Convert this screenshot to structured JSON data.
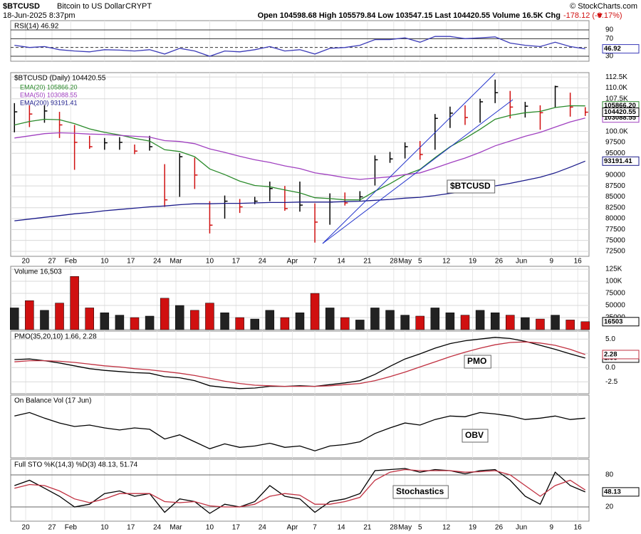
{
  "header": {
    "symbol": "$BTCUSD",
    "name": "Bitcoin to US Dollar",
    "exchange": "CRYPT",
    "date": "18-Jun-2025 8:37pm",
    "quote": "Open 104598.68  High 105579.84  Low 103547.15  Last 104420.55  Volume 16.5K  Chg",
    "change": "-178.12 (-0.17%)",
    "credit": "© StockCharts.com"
  },
  "chart_data": [
    {
      "type": "line",
      "title": "RSI(14) 46.92",
      "ylim": [
        18.7,
        111
      ],
      "yticks": [
        90,
        70,
        50,
        30
      ],
      "grid_color": "#333333",
      "series": [
        {
          "color": "#3b3bb8",
          "last_box": true,
          "values": [
            55,
            50,
            52,
            45,
            42,
            40,
            45,
            44,
            42,
            45,
            35,
            48,
            42,
            30,
            42,
            40,
            45,
            52,
            42,
            45,
            35,
            48,
            50,
            55,
            68,
            68,
            72,
            62,
            75,
            75,
            70,
            72,
            74,
            60,
            55,
            52,
            62,
            52,
            46.92
          ]
        }
      ]
    },
    {
      "type": "ohlc",
      "title": "$BTCUSD (Daily) 104420.55",
      "annotation": "$BTCUSD",
      "ylim": [
        71350,
        113500
      ],
      "grid_color": "#d8d8d8",
      "color_up": "#000000",
      "color_down": "#d01010",
      "yticks": [
        {
          "value": 112500,
          "label": "112.5K"
        },
        {
          "value": 110000,
          "label": "110.0K"
        },
        {
          "value": 107500,
          "label": "107.5K"
        },
        {
          "value": 100000,
          "label": "100.0K"
        },
        97500,
        95000,
        90000,
        87500,
        85000,
        82500,
        80000,
        77500,
        75000,
        72500
      ],
      "xlim": [
        16,
        170
      ],
      "xticks": [
        {
          "value": 20,
          "label": "20"
        },
        {
          "value": 27,
          "label": "27"
        },
        {
          "value": 32,
          "label": "Feb"
        },
        {
          "value": 41,
          "label": "10"
        },
        {
          "value": 48,
          "label": "17"
        },
        {
          "value": 55,
          "label": "24"
        },
        {
          "value": 60,
          "label": "Mar"
        },
        {
          "value": 69,
          "label": "10"
        },
        {
          "value": 76,
          "label": "17"
        },
        {
          "value": 83,
          "label": "24"
        },
        {
          "value": 91,
          "label": "Apr"
        },
        {
          "value": 97,
          "label": "7"
        },
        {
          "value": 104,
          "label": "14"
        },
        {
          "value": 111,
          "label": "21"
        },
        {
          "value": 118,
          "label": "28"
        },
        {
          "value": 121,
          "label": "May"
        },
        {
          "value": 125,
          "label": "5"
        },
        {
          "value": 132,
          "label": "12"
        },
        {
          "value": 139,
          "label": "19"
        },
        {
          "value": 146,
          "label": "26"
        },
        {
          "value": 152,
          "label": "Jun"
        },
        {
          "value": 160,
          "label": "9"
        },
        {
          "value": 167,
          "label": "16"
        }
      ],
      "x": [
        17,
        21,
        25,
        29,
        33,
        37,
        41,
        45,
        49,
        53,
        57,
        61,
        65,
        69,
        73,
        77,
        81,
        85,
        89,
        93,
        97,
        101,
        105,
        109,
        113,
        117,
        121,
        125,
        129,
        133,
        137,
        141,
        145,
        149,
        153,
        157,
        161,
        165,
        169
      ],
      "high": [
        106500,
        106000,
        106000,
        104500,
        101500,
        99000,
        98500,
        98700,
        97000,
        99000,
        92500,
        95000,
        94000,
        84000,
        85300,
        84500,
        85000,
        88500,
        87500,
        88500,
        83500,
        85800,
        86000,
        86300,
        94500,
        95300,
        97500,
        97800,
        104000,
        105700,
        106000,
        107500,
        111900,
        109300,
        106800,
        106000,
        110500,
        108900,
        105579.84
      ],
      "low": [
        99800,
        101000,
        102000,
        98500,
        91200,
        96000,
        95800,
        95800,
        94800,
        95600,
        82700,
        85000,
        86800,
        76600,
        80000,
        81300,
        83300,
        84000,
        81800,
        81600,
        74500,
        78600,
        83000,
        84000,
        87600,
        92800,
        93800,
        93500,
        95800,
        100800,
        101500,
        102000,
        106500,
        103000,
        103200,
        100400,
        105500,
        103400,
        103547.15
      ],
      "close": [
        104500,
        104000,
        104700,
        101500,
        97500,
        96500,
        97400,
        97500,
        95500,
        96500,
        84300,
        94200,
        90000,
        78500,
        84000,
        82700,
        84000,
        86900,
        82300,
        83100,
        79200,
        83800,
        83600,
        85000,
        93500,
        93700,
        96500,
        94700,
        103000,
        104200,
        103200,
        106800,
        108900,
        105600,
        105800,
        104300,
        110300,
        105600,
        104420.55
      ],
      "series": [
        {
          "name": "EMA(20) 105866.20",
          "color": "#2a8a2a",
          "last_box": true,
          "last_label": "105866.20",
          "values": [
            101500,
            102300,
            102800,
            102700,
            101800,
            100600,
            99800,
            99200,
            98400,
            97800,
            95800,
            95400,
            94200,
            91400,
            90100,
            88600,
            87600,
            87300,
            86600,
            85900,
            84800,
            84600,
            84300,
            84300,
            86300,
            88000,
            90000,
            91300,
            94000,
            96500,
            98400,
            100500,
            102800,
            103700,
            104300,
            104600,
            105500,
            105900,
            105866.2
          ]
        },
        {
          "name": "EMA(50) 103088.55",
          "color": "#a040c0",
          "last_box": true,
          "values": [
            98500,
            99000,
            99500,
            99700,
            99600,
            99400,
            99300,
            99100,
            98900,
            98700,
            97900,
            97700,
            97200,
            96000,
            95200,
            94300,
            93500,
            92900,
            92100,
            91500,
            90500,
            90000,
            89400,
            89000,
            89300,
            89600,
            90100,
            90500,
            91600,
            92800,
            93900,
            95200,
            96700,
            97800,
            98900,
            99800,
            101000,
            102200,
            103088.55
          ]
        },
        {
          "name": "EMA(200) 93191.41",
          "color": "#1a1a8a",
          "last_box": true,
          "values": [
            79500,
            79900,
            80300,
            80700,
            81100,
            81400,
            81800,
            82100,
            82400,
            82700,
            82900,
            83200,
            83400,
            83400,
            83500,
            83500,
            83600,
            83700,
            83700,
            83800,
            83800,
            83800,
            83900,
            84000,
            84200,
            84400,
            84700,
            84900,
            85300,
            85800,
            86200,
            86800,
            87500,
            88100,
            88800,
            89500,
            90500,
            91800,
            93191.41
          ]
        }
      ]
    },
    {
      "type": "bar",
      "title": "Volume 16,503",
      "ylim": [
        0,
        131000
      ],
      "grid_color": "#d8d8d8",
      "color_up": "#222222",
      "color_down": "#d01010",
      "yticks": [
        {
          "value": 125000,
          "label": "125K"
        },
        {
          "value": 100000,
          "label": "100K"
        },
        75000,
        50000,
        25000
      ],
      "values": [
        45000,
        60000,
        40000,
        55000,
        110000,
        45000,
        35000,
        30000,
        25000,
        28000,
        65000,
        50000,
        40000,
        55000,
        35000,
        25000,
        22000,
        40000,
        25000,
        35000,
        75000,
        45000,
        25000,
        20000,
        45000,
        40000,
        30000,
        28000,
        45000,
        35000,
        30000,
        40000,
        35000,
        30000,
        25000,
        22000,
        30000,
        20000,
        16503
      ]
    },
    {
      "type": "line",
      "title": "PMO(35,20,10) 1.66, 2.28",
      "annotation": "PMO",
      "ylim": [
        -4.6,
        6.4
      ],
      "grid_color": "#d8d8d8",
      "yticks": [
        {
          "value": 5,
          "label": "5.0"
        },
        {
          "value": 2.5,
          "label": "2.5"
        },
        {
          "value": 0,
          "label": "0.0"
        },
        {
          "value": -2.5,
          "label": "-2.5"
        }
      ],
      "series": [
        {
          "color": "#000000",
          "last_box": true,
          "values": [
            1.4,
            1.5,
            1.2,
            0.8,
            0.3,
            -0.2,
            -0.5,
            -0.7,
            -0.9,
            -1.0,
            -1.6,
            -1.8,
            -2.3,
            -3.2,
            -3.5,
            -3.7,
            -3.6,
            -3.3,
            -3.3,
            -3.2,
            -3.3,
            -3.0,
            -2.7,
            -2.3,
            -1.2,
            0.2,
            1.5,
            2.4,
            3.4,
            4.2,
            4.7,
            5.0,
            5.3,
            5.1,
            4.6,
            3.9,
            3.2,
            2.4,
            1.66
          ]
        },
        {
          "color": "#c03040",
          "last_box": true,
          "values": [
            1.0,
            1.2,
            1.2,
            1.1,
            0.9,
            0.6,
            0.3,
            0.1,
            -0.2,
            -0.4,
            -0.7,
            -1.0,
            -1.4,
            -1.9,
            -2.4,
            -2.8,
            -3.1,
            -3.2,
            -3.3,
            -3.3,
            -3.3,
            -3.2,
            -3.0,
            -2.8,
            -2.3,
            -1.6,
            -0.8,
            0.1,
            1.0,
            1.9,
            2.7,
            3.4,
            4.0,
            4.4,
            4.5,
            4.3,
            3.9,
            3.2,
            2.28
          ]
        }
      ]
    },
    {
      "type": "line",
      "title": "On Balance Vol (17 Jun)",
      "annotation": "OBV",
      "ylim": [
        -5,
        85
      ],
      "series": [
        {
          "color": "#000000",
          "values": [
            55,
            60,
            52,
            45,
            40,
            42,
            38,
            35,
            38,
            36,
            22,
            28,
            18,
            8,
            15,
            10,
            12,
            16,
            10,
            12,
            5,
            12,
            14,
            18,
            30,
            38,
            45,
            42,
            50,
            55,
            54,
            60,
            58,
            55,
            50,
            52,
            55,
            50,
            52
          ]
        }
      ]
    },
    {
      "type": "line",
      "title": "Full STO %K(14,3) %D(3) 48.13, 51.74",
      "annotation": "Stochastics",
      "ylim": [
        -6.7,
        109.3
      ],
      "yticks": [
        80,
        20
      ],
      "grid_color": "#666666",
      "series": [
        {
          "color": "#000000",
          "last_box": true,
          "values": [
            60,
            70,
            55,
            40,
            20,
            25,
            45,
            50,
            40,
            45,
            10,
            35,
            30,
            8,
            25,
            20,
            30,
            60,
            40,
            35,
            10,
            30,
            35,
            45,
            88,
            90,
            92,
            85,
            90,
            88,
            82,
            88,
            90,
            70,
            40,
            25,
            85,
            60,
            48.13
          ]
        },
        {
          "color": "#c03040",
          "values": [
            55,
            62,
            60,
            50,
            35,
            28,
            35,
            45,
            45,
            45,
            30,
            28,
            30,
            22,
            20,
            20,
            25,
            40,
            45,
            42,
            25,
            25,
            30,
            38,
            70,
            85,
            90,
            88,
            88,
            88,
            85,
            86,
            88,
            80,
            60,
            40,
            60,
            70,
            51.74
          ]
        }
      ]
    }
  ]
}
